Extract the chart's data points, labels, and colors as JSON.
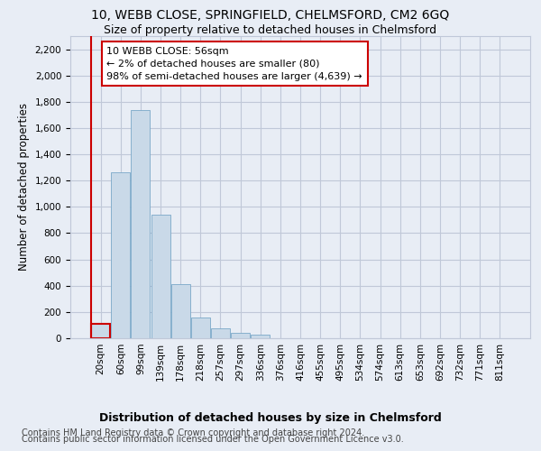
{
  "title": "10, WEBB CLOSE, SPRINGFIELD, CHELMSFORD, CM2 6GQ",
  "subtitle": "Size of property relative to detached houses in Chelmsford",
  "xlabel": "Distribution of detached houses by size in Chelmsford",
  "ylabel": "Number of detached properties",
  "categories": [
    "20sqm",
    "60sqm",
    "99sqm",
    "139sqm",
    "178sqm",
    "218sqm",
    "257sqm",
    "297sqm",
    "336sqm",
    "376sqm",
    "416sqm",
    "455sqm",
    "495sqm",
    "534sqm",
    "574sqm",
    "613sqm",
    "653sqm",
    "692sqm",
    "732sqm",
    "771sqm",
    "811sqm"
  ],
  "bar_values": [
    110,
    1260,
    1740,
    940,
    415,
    155,
    75,
    40,
    25,
    0,
    0,
    0,
    0,
    0,
    0,
    0,
    0,
    0,
    0,
    0,
    0
  ],
  "bar_color": "#c9d9e8",
  "bar_edge_color": "#7aa8c8",
  "highlight_bar_index": 0,
  "highlight_color": "#cc0000",
  "annotation_line1": "10 WEBB CLOSE: 56sqm",
  "annotation_line2": "← 2% of detached houses are smaller (80)",
  "annotation_line3": "98% of semi-detached houses are larger (4,639) →",
  "annotation_box_color": "#ffffff",
  "annotation_box_edge_color": "#cc0000",
  "ylim": [
    0,
    2300
  ],
  "yticks": [
    0,
    200,
    400,
    600,
    800,
    1000,
    1200,
    1400,
    1600,
    1800,
    2000,
    2200
  ],
  "grid_color": "#c0c8d8",
  "bg_color": "#e8edf5",
  "plot_bg_color": "#e8edf5",
  "footer_line1": "Contains HM Land Registry data © Crown copyright and database right 2024.",
  "footer_line2": "Contains public sector information licensed under the Open Government Licence v3.0.",
  "title_fontsize": 10,
  "subtitle_fontsize": 9,
  "xlabel_fontsize": 9,
  "ylabel_fontsize": 8.5,
  "tick_fontsize": 7.5,
  "annotation_fontsize": 8,
  "footer_fontsize": 7
}
